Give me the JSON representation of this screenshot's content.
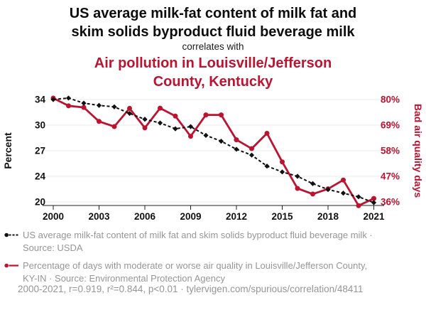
{
  "header": {
    "title": "US average milk-fat content of milk fat and\nskim solids byproduct fluid beverage milk",
    "connector": "correlates with",
    "subtitle": "Air pollution in Louisville/Jefferson\nCounty, Kentucky"
  },
  "colors": {
    "accent_red": "#bc1330",
    "series_black": "#111111",
    "grid": "#ebebeb",
    "legend_gray": "#969696"
  },
  "chart_data": {
    "type": "line",
    "x": [
      2000,
      2001,
      2002,
      2003,
      2004,
      2005,
      2006,
      2007,
      2008,
      2009,
      2010,
      2011,
      2012,
      2013,
      2014,
      2015,
      2016,
      2017,
      2018,
      2019,
      2020,
      2021
    ],
    "x_tick_labels": [
      "2000",
      "2003",
      "2006",
      "2009",
      "2012",
      "2015",
      "2018",
      "2021"
    ],
    "left_axis": {
      "label": "Percent",
      "tick_labels": [
        "34",
        "30",
        "27",
        "24",
        "20"
      ],
      "top_value": 34,
      "bottom_value": 20
    },
    "right_axis": {
      "label": "Bad air quality days",
      "tick_labels": [
        "80%",
        "69%",
        "58%",
        "47%",
        "36%"
      ],
      "top_value": 80,
      "bottom_value": 36
    },
    "grid": true,
    "series": [
      {
        "name": "US average milk-fat content of milk fat and skim solids byproduct fluid beverage milk",
        "axis": "left",
        "style": "dashed-diamond",
        "color": "#111111",
        "values": [
          34.0,
          34.2,
          33.5,
          33.2,
          33.0,
          32.1,
          31.3,
          30.8,
          30.0,
          30.3,
          29.1,
          28.3,
          27.2,
          26.4,
          24.9,
          24.1,
          23.5,
          22.5,
          21.7,
          21.2,
          20.7,
          19.9
        ]
      },
      {
        "name": "Percentage of days with moderate or worse air quality in Louisville/Jefferson County, KY-IN",
        "axis": "right",
        "style": "solid-circle",
        "color": "#bc1330",
        "values": [
          80.6,
          77.3,
          76.6,
          70.6,
          68.4,
          76.2,
          67.8,
          76.3,
          72.9,
          64.2,
          73.4,
          73.4,
          62.7,
          58.9,
          65.5,
          53.2,
          41.8,
          39.4,
          41.6,
          45.4,
          34.4,
          37.5
        ]
      }
    ]
  },
  "legend": [
    {
      "label": "US average milk-fat content of milk fat and skim solids byproduct fluid beverage milk · Source: USDA",
      "marker": "black-dashed-dot"
    },
    {
      "label": "Percentage of days with moderate or worse air quality in Louisville/Jefferson County, KY-IN · Source: Environmental Protection Agency",
      "marker": "red-solid-dot"
    }
  ],
  "footer": {
    "text": "2000-2021, r=0.919, r²=0.844, p<0.01 · tylervigen.com/spurious/correlation/48411"
  }
}
